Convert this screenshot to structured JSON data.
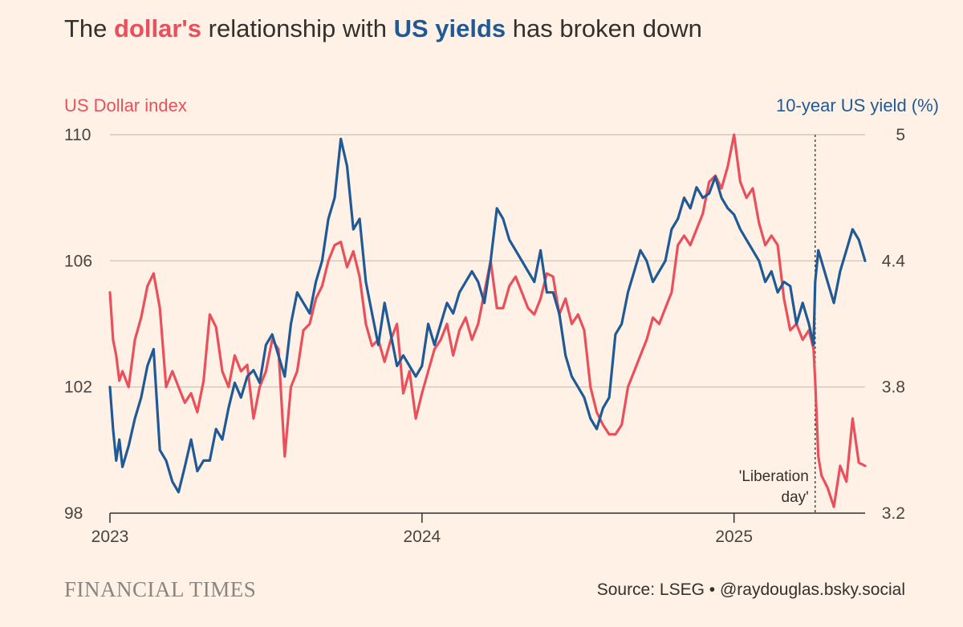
{
  "header": {
    "title_pre": "The ",
    "title_dollar": "dollar's",
    "title_mid": " relationship with ",
    "title_yields": "US yields",
    "title_post": " has broken down"
  },
  "footer": {
    "brand": "FINANCIAL TIMES",
    "source": "Source: LSEG • @raydouglas.bsky.social"
  },
  "colors": {
    "dollar": "#E8505B",
    "yield": "#1F5A96",
    "grid": "#C9BFB4",
    "axis": "#33302E",
    "background": "#FFF1E5"
  },
  "chart_data": {
    "type": "line",
    "title": "The dollar's relationship with US yields has broken down",
    "left_axis": {
      "label": "US Dollar index",
      "range": [
        98,
        110
      ],
      "ticks": [
        "110",
        "106",
        "102",
        "98"
      ]
    },
    "right_axis": {
      "label": "10-year US yield (%)",
      "range": [
        3.2,
        5.0
      ],
      "ticks": [
        "5",
        "4.4",
        "3.8",
        "3.2"
      ]
    },
    "x_axis": {
      "range": [
        2023.0,
        2025.42
      ],
      "ticks": [
        "2023",
        "2024",
        "2025"
      ]
    },
    "grid": true,
    "annotations": [
      {
        "x": 2025.26,
        "line1": "'Liberation",
        "line2": "day'"
      }
    ],
    "series": [
      {
        "name": "US Dollar index",
        "axis": "left",
        "x": [
          2023.0,
          2023.01,
          2023.02,
          2023.03,
          2023.04,
          2023.06,
          2023.08,
          2023.1,
          2023.12,
          2023.14,
          2023.16,
          2023.18,
          2023.2,
          2023.22,
          2023.24,
          2023.26,
          2023.28,
          2023.3,
          2023.32,
          2023.34,
          2023.36,
          2023.38,
          2023.4,
          2023.42,
          2023.44,
          2023.46,
          2023.48,
          2023.5,
          2023.52,
          2023.54,
          2023.56,
          2023.58,
          2023.6,
          2023.62,
          2023.64,
          2023.66,
          2023.68,
          2023.7,
          2023.72,
          2023.74,
          2023.76,
          2023.78,
          2023.8,
          2023.82,
          2023.84,
          2023.86,
          2023.88,
          2023.9,
          2023.92,
          2023.94,
          2023.96,
          2023.98,
          2024.0,
          2024.02,
          2024.04,
          2024.06,
          2024.08,
          2024.1,
          2024.12,
          2024.14,
          2024.16,
          2024.18,
          2024.2,
          2024.22,
          2024.24,
          2024.26,
          2024.28,
          2024.3,
          2024.32,
          2024.34,
          2024.36,
          2024.38,
          2024.4,
          2024.42,
          2024.44,
          2024.46,
          2024.48,
          2024.5,
          2024.52,
          2024.54,
          2024.56,
          2024.58,
          2024.6,
          2024.62,
          2024.64,
          2024.66,
          2024.68,
          2024.7,
          2024.72,
          2024.74,
          2024.76,
          2024.78,
          2024.8,
          2024.82,
          2024.84,
          2024.86,
          2024.88,
          2024.9,
          2024.92,
          2024.94,
          2024.96,
          2024.98,
          2025.0,
          2025.02,
          2025.04,
          2025.06,
          2025.08,
          2025.1,
          2025.12,
          2025.14,
          2025.16,
          2025.18,
          2025.2,
          2025.22,
          2025.24,
          2025.255,
          2025.26,
          2025.27,
          2025.28,
          2025.3,
          2025.32,
          2025.34,
          2025.36,
          2025.38,
          2025.4,
          2025.42
        ],
        "values": [
          105.0,
          103.5,
          103.0,
          102.2,
          102.5,
          102.0,
          103.5,
          104.2,
          105.2,
          105.6,
          104.5,
          102.0,
          102.5,
          102.0,
          101.5,
          101.8,
          101.2,
          102.2,
          104.3,
          103.9,
          102.5,
          102.0,
          103.0,
          102.5,
          102.7,
          101.0,
          102.0,
          102.5,
          103.5,
          103.2,
          99.8,
          102.0,
          102.5,
          103.8,
          104.0,
          104.8,
          105.2,
          106.0,
          106.5,
          106.6,
          105.8,
          106.3,
          105.5,
          104.0,
          103.3,
          103.5,
          102.8,
          103.5,
          104.0,
          101.8,
          102.5,
          101.0,
          101.8,
          102.5,
          103.2,
          103.5,
          104.0,
          103.0,
          103.8,
          104.2,
          103.5,
          104.0,
          105.0,
          106.0,
          104.5,
          104.5,
          105.2,
          105.5,
          105.0,
          104.5,
          104.3,
          104.8,
          105.6,
          105.5,
          104.3,
          104.8,
          104.0,
          104.3,
          103.8,
          102.0,
          101.2,
          100.8,
          100.5,
          100.5,
          100.8,
          102.0,
          102.5,
          103.0,
          103.5,
          104.2,
          104.0,
          104.5,
          105.0,
          106.5,
          106.8,
          106.5,
          107.0,
          107.5,
          108.5,
          108.7,
          108.3,
          109.0,
          110.0,
          108.5,
          108.0,
          108.3,
          107.2,
          106.5,
          106.8,
          106.5,
          104.8,
          103.8,
          104.0,
          103.5,
          103.8,
          103.2,
          102.2,
          99.8,
          99.2,
          98.8,
          98.2,
          99.5,
          99.0,
          101.0,
          99.6,
          99.5
        ]
      },
      {
        "name": "10-year US yield (%)",
        "axis": "right",
        "x": [
          2023.0,
          2023.01,
          2023.02,
          2023.03,
          2023.04,
          2023.06,
          2023.08,
          2023.1,
          2023.12,
          2023.14,
          2023.16,
          2023.18,
          2023.2,
          2023.22,
          2023.24,
          2023.26,
          2023.28,
          2023.3,
          2023.32,
          2023.34,
          2023.36,
          2023.38,
          2023.4,
          2023.42,
          2023.44,
          2023.46,
          2023.48,
          2023.5,
          2023.52,
          2023.54,
          2023.56,
          2023.58,
          2023.6,
          2023.62,
          2023.64,
          2023.66,
          2023.68,
          2023.7,
          2023.72,
          2023.74,
          2023.76,
          2023.78,
          2023.8,
          2023.82,
          2023.84,
          2023.86,
          2023.88,
          2023.9,
          2023.92,
          2023.94,
          2023.96,
          2023.98,
          2024.0,
          2024.02,
          2024.04,
          2024.06,
          2024.08,
          2024.1,
          2024.12,
          2024.14,
          2024.16,
          2024.18,
          2024.2,
          2024.22,
          2024.24,
          2024.26,
          2024.28,
          2024.3,
          2024.32,
          2024.34,
          2024.36,
          2024.38,
          2024.4,
          2024.42,
          2024.44,
          2024.46,
          2024.48,
          2024.5,
          2024.52,
          2024.54,
          2024.56,
          2024.58,
          2024.6,
          2024.62,
          2024.64,
          2024.66,
          2024.68,
          2024.7,
          2024.72,
          2024.74,
          2024.76,
          2024.78,
          2024.8,
          2024.82,
          2024.84,
          2024.86,
          2024.88,
          2024.9,
          2024.92,
          2024.94,
          2024.96,
          2024.98,
          2025.0,
          2025.02,
          2025.04,
          2025.06,
          2025.08,
          2025.1,
          2025.12,
          2025.14,
          2025.16,
          2025.18,
          2025.2,
          2025.22,
          2025.24,
          2025.255,
          2025.26,
          2025.27,
          2025.28,
          2025.3,
          2025.32,
          2025.34,
          2025.36,
          2025.38,
          2025.4,
          2025.42
        ],
        "values": [
          3.8,
          3.6,
          3.45,
          3.55,
          3.42,
          3.52,
          3.65,
          3.75,
          3.9,
          3.98,
          3.5,
          3.45,
          3.35,
          3.3,
          3.42,
          3.55,
          3.4,
          3.45,
          3.45,
          3.6,
          3.55,
          3.7,
          3.82,
          3.75,
          3.85,
          3.88,
          3.82,
          4.0,
          4.05,
          3.95,
          3.85,
          4.1,
          4.25,
          4.2,
          4.15,
          4.3,
          4.4,
          4.6,
          4.7,
          4.98,
          4.85,
          4.55,
          4.6,
          4.3,
          4.15,
          4.0,
          4.2,
          4.05,
          3.9,
          3.95,
          3.9,
          3.85,
          3.9,
          4.1,
          4.0,
          4.1,
          4.2,
          4.15,
          4.25,
          4.3,
          4.35,
          4.3,
          4.2,
          4.4,
          4.65,
          4.6,
          4.5,
          4.45,
          4.4,
          4.35,
          4.3,
          4.45,
          4.25,
          4.25,
          4.15,
          3.95,
          3.85,
          3.8,
          3.75,
          3.65,
          3.6,
          3.7,
          3.75,
          4.05,
          4.1,
          4.25,
          4.35,
          4.45,
          4.4,
          4.3,
          4.35,
          4.4,
          4.55,
          4.6,
          4.7,
          4.65,
          4.75,
          4.7,
          4.72,
          4.8,
          4.7,
          4.65,
          4.62,
          4.55,
          4.5,
          4.45,
          4.4,
          4.3,
          4.35,
          4.25,
          4.3,
          4.28,
          4.1,
          4.2,
          4.1,
          4.0,
          4.3,
          4.45,
          4.4,
          4.3,
          4.2,
          4.35,
          4.45,
          4.55,
          4.5,
          4.4
        ]
      }
    ]
  }
}
